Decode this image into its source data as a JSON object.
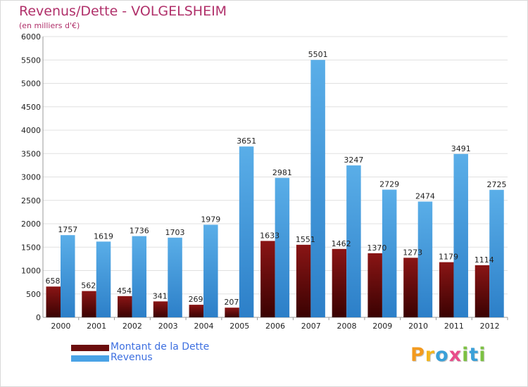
{
  "header": {
    "title": "Revenus/Dette - VOLGELSHEIM",
    "subtitle": "(en milliers d'€)"
  },
  "legend": {
    "items": [
      {
        "label": "Montant de la Dette",
        "color": "#6b0d0d"
      },
      {
        "label": "Revenus",
        "color": "#4aa3e6"
      }
    ]
  },
  "logo": {
    "text": "Proxiti"
  },
  "colors": {
    "debt_top": "#8a1515",
    "debt_bottom": "#3a0202",
    "revenue_top": "#5aaee8",
    "revenue_bottom": "#2c7fc8",
    "grid": "#e0e0e0",
    "title": "#b0306a"
  },
  "chart_data": {
    "type": "bar",
    "categories": [
      "2000",
      "2001",
      "2002",
      "2003",
      "2004",
      "2005",
      "2006",
      "2007",
      "2008",
      "2009",
      "2010",
      "2011",
      "2012"
    ],
    "series": [
      {
        "name": "Montant de la Dette",
        "values": [
          658,
          562,
          454,
          341,
          269,
          207,
          1633,
          1551,
          1462,
          1370,
          1273,
          1179,
          1114
        ],
        "labels": [
          "658",
          "562",
          "454",
          "341",
          "269",
          "207",
          "1633",
          "1551",
          "1462",
          "1370",
          "1273",
          "1179",
          "1114"
        ]
      },
      {
        "name": "Revenus",
        "values": [
          1757,
          1619,
          1736,
          1703,
          1979,
          3651,
          2981,
          5501,
          3247,
          2729,
          2474,
          3491,
          2725
        ],
        "labels": [
          "1757",
          "1619",
          "1736",
          "1703",
          "1979",
          "3651",
          "2981",
          "5501",
          "3247",
          "2729",
          "2474",
          "3491",
          "2725"
        ]
      }
    ],
    "title": "Revenus/Dette - VOLGELSHEIM",
    "ylabel": "(en milliers d'€)",
    "ylim": [
      0,
      6000
    ],
    "yticks": [
      0,
      500,
      1000,
      1500,
      2000,
      2500,
      3000,
      3500,
      4000,
      4500,
      5000,
      5500,
      6000
    ],
    "grid": true,
    "legend_position": "bottom-left"
  }
}
